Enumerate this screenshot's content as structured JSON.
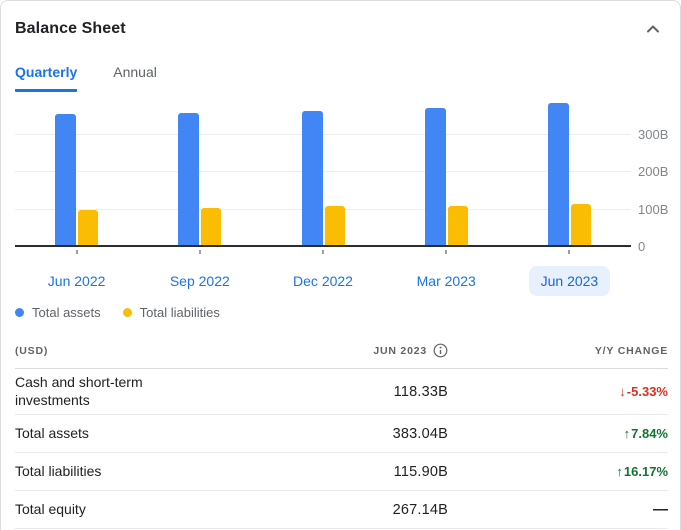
{
  "card": {
    "title": "Balance Sheet"
  },
  "tabs": [
    {
      "label": "Quarterly",
      "active": true
    },
    {
      "label": "Annual",
      "active": false
    }
  ],
  "chart_data": {
    "type": "bar",
    "title": "Balance Sheet (Quarterly)",
    "categories": [
      "Jun 2022",
      "Sep 2022",
      "Dec 2022",
      "Mar 2023",
      "Jun 2023"
    ],
    "series": [
      {
        "name": "Total assets",
        "color": "#4285f4",
        "values": [
          355,
          358,
          364,
          370,
          383
        ]
      },
      {
        "name": "Total liabilities",
        "color": "#fbbc04",
        "values": [
          100,
          103,
          109,
          110,
          116
        ]
      }
    ],
    "unit": "USD billions",
    "selected_category": "Jun 2023",
    "y_ticks": [
      {
        "label": "300B",
        "value": 300
      },
      {
        "label": "200B",
        "value": 200
      },
      {
        "label": "100B",
        "value": 100
      },
      {
        "label": "0",
        "value": 0
      }
    ],
    "ylim": [
      0,
      390
    ],
    "grid": true,
    "legend_position": "bottom-left"
  },
  "table": {
    "columns": {
      "unit": "(USD)",
      "period": "JUN 2023",
      "change": "Y/Y CHANGE"
    },
    "rows": [
      {
        "label": "Cash and short-term investments",
        "value": "118.33B",
        "arrow": "↓",
        "change": "-5.33%",
        "direction": "down"
      },
      {
        "label": "Total assets",
        "value": "383.04B",
        "arrow": "↑",
        "change": "7.84%",
        "direction": "up"
      },
      {
        "label": "Total liabilities",
        "value": "115.90B",
        "arrow": "↑",
        "change": "16.17%",
        "direction": "up"
      },
      {
        "label": "Total equity",
        "value": "267.14B",
        "arrow": "",
        "change": "—",
        "direction": "flat"
      }
    ]
  },
  "colors": {
    "assets": "#4285f4",
    "liabilities": "#fbbc04",
    "up": "#137333",
    "down": "#d93025",
    "accent": "#1a73e8",
    "selected_bg": "#e8f0fe",
    "selected_text": "#1967d2"
  }
}
